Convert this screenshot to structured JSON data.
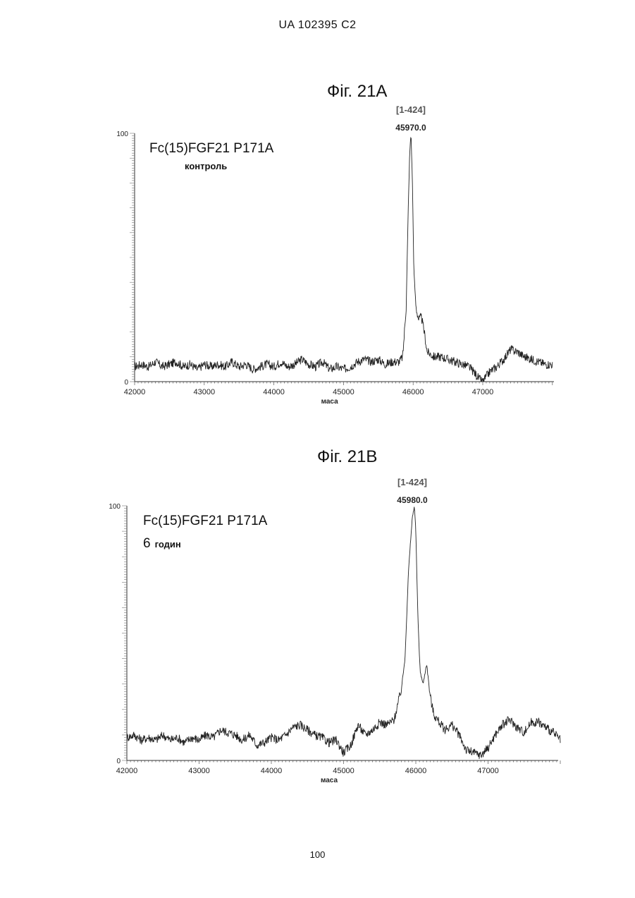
{
  "header": {
    "text": "UA   102395   C2"
  },
  "page_number": "100",
  "figures": [
    {
      "title": "Фіг. 21А",
      "sample_name": "Fc(15)FGF21 P171A",
      "sample_condition": "контроль",
      "peak_label_range": "[1-424]",
      "peak_label_mass": "45970.0",
      "chart_data": {
        "type": "line",
        "xlabel": "маса",
        "ylabel": "",
        "xlim": [
          42000,
          48000
        ],
        "ylim": [
          0,
          100
        ],
        "x_ticks": [
          "42000",
          "43000",
          "44000",
          "45000",
          "46000",
          "47000"
        ],
        "y_ticks": [
          "0",
          "100"
        ],
        "series": [
          {
            "x": [
              42000,
              42100,
              42200,
              42300,
              42400,
              42500,
              42600,
              42700,
              42800,
              42900,
              43000,
              43100,
              43200,
              43300,
              43400,
              43500,
              43600,
              43700,
              43800,
              43900,
              44000,
              44100,
              44200,
              44300,
              44400,
              44500,
              44600,
              44700,
              44800,
              44900,
              45000,
              45100,
              45200,
              45300,
              45400,
              45500,
              45600,
              45700,
              45800,
              45850,
              45900,
              45930,
              45950,
              45970,
              45990,
              46010,
              46040,
              46080,
              46120,
              46160,
              46200,
              46250,
              46300,
              46400,
              46500,
              46600,
              46700,
              46800,
              46900,
              46950,
              47000,
              47050,
              47100,
              47200,
              47300,
              47400,
              47500,
              47600,
              47700,
              47800,
              47900,
              48000
            ],
            "y": [
              6,
              7,
              6,
              8,
              6,
              7,
              8,
              6,
              7,
              5,
              7,
              6,
              7,
              6,
              8,
              6,
              7,
              5,
              6,
              7,
              6,
              8,
              6,
              7,
              9,
              7,
              6,
              8,
              5,
              6,
              5,
              6,
              8,
              9,
              8,
              9,
              7,
              8,
              8,
              10,
              30,
              70,
              92,
              100,
              80,
              45,
              30,
              25,
              26,
              20,
              12,
              11,
              10,
              10,
              9,
              8,
              7,
              6,
              3,
              1,
              0,
              2,
              4,
              6,
              9,
              13,
              12,
              10,
              9,
              8,
              7,
              7
            ]
          }
        ]
      }
    },
    {
      "title": "Фіг. 21В",
      "sample_name": "Fc(15)FGF21 P171A",
      "sample_condition_num": "6",
      "sample_condition": "годин",
      "peak_label_range": "[1-424]",
      "peak_label_mass": "45980.0",
      "chart_data": {
        "type": "line",
        "xlabel": "маса",
        "ylabel": "",
        "xlim": [
          42000,
          48000
        ],
        "ylim": [
          0,
          100
        ],
        "x_ticks": [
          "42000",
          "43000",
          "44000",
          "45000",
          "46000",
          "47000"
        ],
        "y_ticks": [
          "0",
          "100"
        ],
        "series": [
          {
            "x": [
              42000,
              42100,
              42200,
              42300,
              42400,
              42500,
              42600,
              42700,
              42800,
              42900,
              43000,
              43100,
              43200,
              43300,
              43400,
              43500,
              43600,
              43700,
              43800,
              43900,
              44000,
              44100,
              44200,
              44300,
              44400,
              44500,
              44600,
              44700,
              44800,
              44900,
              45000,
              45100,
              45200,
              45300,
              45400,
              45500,
              45600,
              45700,
              45800,
              45850,
              45900,
              45950,
              45980,
              46000,
              46030,
              46060,
              46100,
              46150,
              46200,
              46250,
              46300,
              46400,
              46500,
              46600,
              46700,
              46800,
              46900,
              47000,
              47100,
              47200,
              47300,
              47400,
              47500,
              47600,
              47700,
              47800,
              47900,
              48000
            ],
            "y": [
              9,
              10,
              8,
              9,
              8,
              10,
              8,
              9,
              7,
              9,
              8,
              10,
              9,
              12,
              11,
              10,
              8,
              10,
              6,
              7,
              9,
              8,
              10,
              13,
              14,
              12,
              10,
              9,
              7,
              8,
              3,
              6,
              14,
              10,
              12,
              15,
              14,
              16,
              28,
              40,
              75,
              95,
              100,
              90,
              55,
              35,
              30,
              38,
              25,
              18,
              16,
              12,
              14,
              10,
              4,
              3,
              2,
              5,
              10,
              14,
              16,
              13,
              11,
              15,
              15,
              13,
              11,
              8
            ]
          }
        ]
      }
    }
  ]
}
